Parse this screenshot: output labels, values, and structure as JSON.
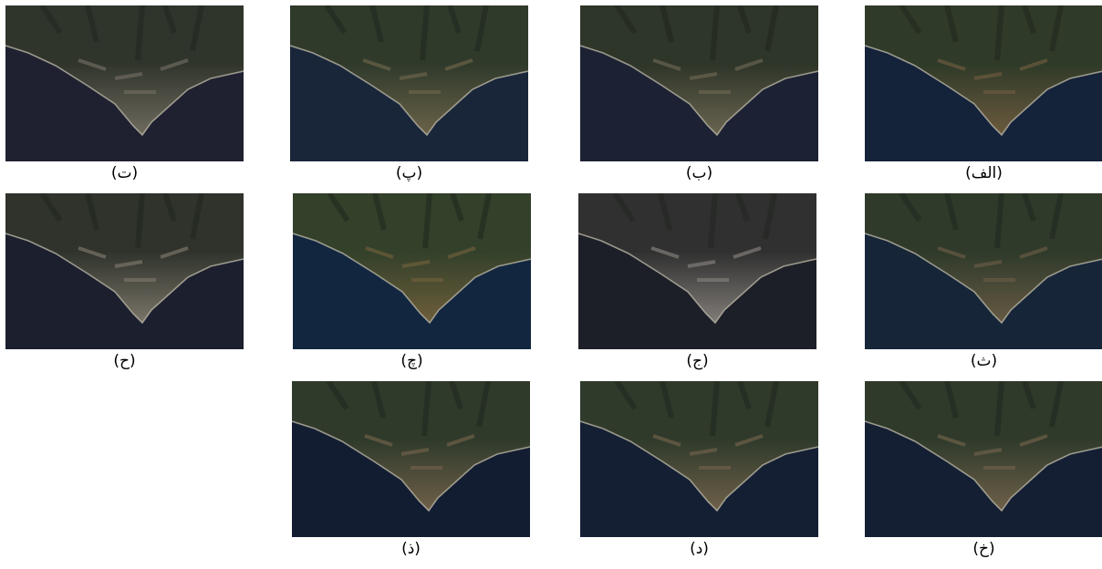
{
  "panels": [
    {
      "label": "(الف)"
    },
    {
      "label": "(ب)"
    },
    {
      "label": "(پ)"
    },
    {
      "label": "(ت)"
    },
    {
      "label": "(ث)"
    },
    {
      "label": "(ج)"
    },
    {
      "label": "(چ)"
    },
    {
      "label": "(ح)"
    },
    {
      "label": "(خ)"
    },
    {
      "label": "(د)"
    },
    {
      "label": "(ذ)"
    }
  ]
}
